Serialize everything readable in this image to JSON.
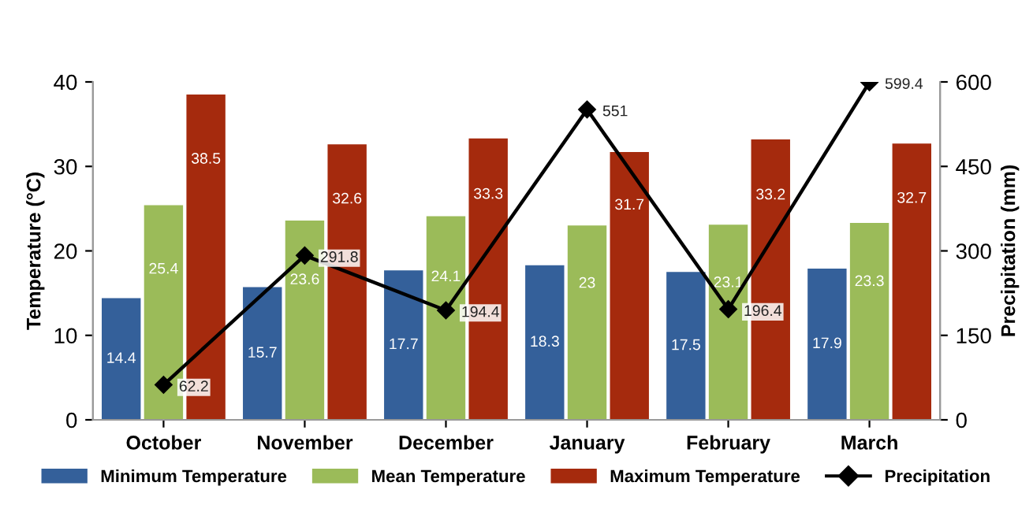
{
  "chart_data": {
    "type": "bar",
    "ylabel": "Temperature (°C)",
    "y2label": "Precipitation (mm)",
    "categories": [
      "October",
      "November",
      "December",
      "January",
      "February",
      "March"
    ],
    "series": [
      {
        "name": "Minimum Temperature",
        "color": "#34609a",
        "values": [
          14.4,
          15.7,
          17.7,
          18.3,
          17.5,
          17.9
        ]
      },
      {
        "name": "Mean Temperature",
        "color": "#9bbb59",
        "values": [
          25.4,
          23.6,
          24.1,
          23,
          23.1,
          23.3
        ]
      },
      {
        "name": "Maximum Temperature",
        "color": "#a52a0d",
        "values": [
          38.5,
          32.6,
          33.3,
          31.7,
          33.2,
          32.7
        ]
      },
      {
        "name": "Precipitation",
        "type": "line",
        "axis": "y2",
        "color": "#000000",
        "marker": "diamond",
        "values": [
          62.2,
          291.8,
          194.4,
          551,
          196.4,
          599.4
        ]
      }
    ],
    "ylim": [
      0,
      40
    ],
    "yticks": [
      0,
      10,
      20,
      30,
      40
    ],
    "y2lim": [
      0,
      600
    ],
    "y2ticks": [
      0,
      150,
      300,
      450,
      600
    ],
    "data_labels": true,
    "grid": false,
    "legend": "bottom"
  }
}
